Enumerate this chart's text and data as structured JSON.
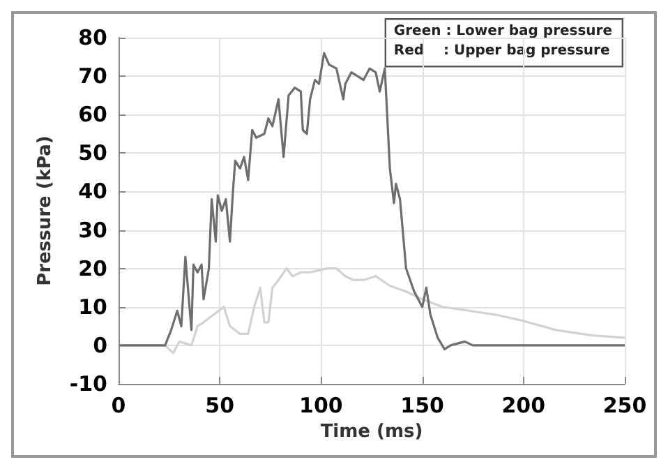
{
  "chart_data": {
    "type": "line",
    "xlabel": "Time (ms)",
    "ylabel": "Pressure (kPa)",
    "xlim": [
      0,
      250
    ],
    "ylim": [
      -10,
      80
    ],
    "xticks": [
      0,
      50,
      100,
      150,
      200,
      250
    ],
    "yticks": [
      -10,
      0,
      10,
      20,
      30,
      40,
      50,
      60,
      70,
      80
    ],
    "grid": true,
    "marker": "none",
    "line_style": "solid",
    "annotations": [
      "Green : Lower bag pressure",
      "Red    : Upper bag pressure"
    ],
    "series": [
      {
        "color": "#d2d2d2",
        "x": [
          0,
          23,
          27,
          30,
          36,
          39,
          42,
          47,
          52,
          55,
          60,
          64,
          67,
          70,
          72,
          74,
          76,
          79,
          83,
          86,
          90,
          94.6,
          99,
          103,
          107.6,
          112,
          116,
          121,
          127,
          134,
          142,
          150,
          160,
          173,
          186,
          199,
          216,
          234,
          250
        ],
        "values": [
          0,
          0,
          -2,
          1,
          0,
          5,
          6,
          8,
          10,
          5,
          3,
          3,
          10,
          15,
          6,
          6,
          15,
          17,
          20,
          18,
          19,
          19,
          19.5,
          20,
          20,
          18,
          17,
          17,
          18,
          15.5,
          14,
          12,
          10,
          9,
          8,
          6.5,
          4,
          2.6,
          2
        ]
      },
      {
        "color": "#6e6e6e",
        "x": [
          0,
          16,
          23,
          26,
          29,
          31,
          33,
          36,
          37,
          39,
          41,
          42,
          44.6,
          46,
          48,
          49,
          51,
          53,
          55,
          56.5,
          57.6,
          60,
          62,
          64,
          66,
          68,
          72,
          74,
          76,
          79,
          81.5,
          84,
          87,
          90,
          91,
          93,
          94.6,
          97,
          99,
          101.5,
          104,
          107.6,
          111,
          112,
          115,
          121,
          124,
          127,
          129,
          131.5,
          134,
          136,
          137,
          139,
          142,
          146,
          150,
          152,
          154,
          157.6,
          161,
          164,
          171,
          175,
          184,
          190,
          199,
          212,
          227,
          250
        ],
        "values": [
          0,
          0,
          0,
          4,
          9,
          5,
          23,
          4,
          21,
          19,
          21,
          12,
          20,
          38,
          27,
          39,
          35,
          38,
          27,
          40,
          48,
          46,
          49,
          43,
          56,
          54,
          55,
          59,
          57,
          64,
          49,
          65,
          67,
          66,
          56,
          55,
          64,
          69,
          68,
          76,
          73,
          72,
          64,
          68,
          71,
          69,
          72,
          71,
          66,
          72,
          46,
          37,
          42,
          38,
          20,
          14,
          10,
          15,
          8,
          2,
          -1,
          0,
          1,
          0,
          0,
          0,
          0,
          0,
          0,
          0
        ]
      }
    ]
  }
}
